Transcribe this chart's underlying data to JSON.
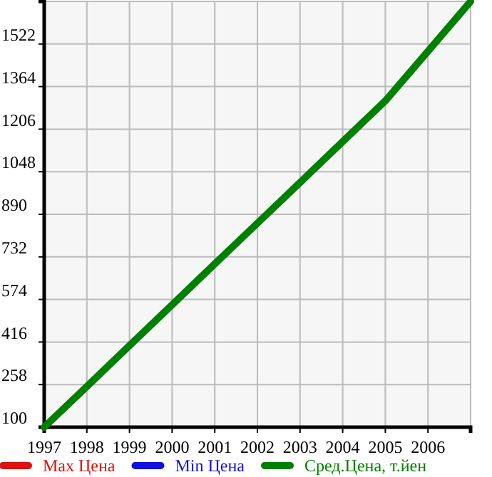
{
  "chart_data": {
    "type": "line",
    "x": [
      1997,
      1998,
      1999,
      2000,
      2001,
      2002,
      2003,
      2004,
      2005,
      2006,
      2007
    ],
    "series": [
      {
        "name": "Max Цена",
        "color": "#dd1111",
        "values": [
          null,
          null,
          null,
          null,
          null,
          null,
          null,
          null,
          null,
          null,
          null
        ]
      },
      {
        "name": "Min Цена",
        "color": "#1111dd",
        "values": [
          null,
          null,
          null,
          null,
          null,
          null,
          null,
          null,
          null,
          null,
          null
        ]
      },
      {
        "name": "Сред.Цена, т.йен",
        "color": "#008000",
        "values": [
          100,
          251,
          403,
          554,
          706,
          857,
          1008,
          1160,
          1311,
          1495,
          1680
        ]
      }
    ],
    "xlim": [
      1997,
      2007
    ],
    "xticks": [
      1997,
      1998,
      1999,
      2000,
      2001,
      2002,
      2003,
      2004,
      2005,
      2006,
      {
        "value": 2007,
        "label": null
      }
    ],
    "ylim": [
      100,
      1680
    ],
    "yticks": [
      100,
      258,
      416,
      574,
      732,
      890,
      1048,
      1206,
      1364,
      1522,
      {
        "value": 1680,
        "label": null
      }
    ],
    "grid": true,
    "legend": "bottom",
    "marker": "none",
    "line_style": "solid"
  }
}
